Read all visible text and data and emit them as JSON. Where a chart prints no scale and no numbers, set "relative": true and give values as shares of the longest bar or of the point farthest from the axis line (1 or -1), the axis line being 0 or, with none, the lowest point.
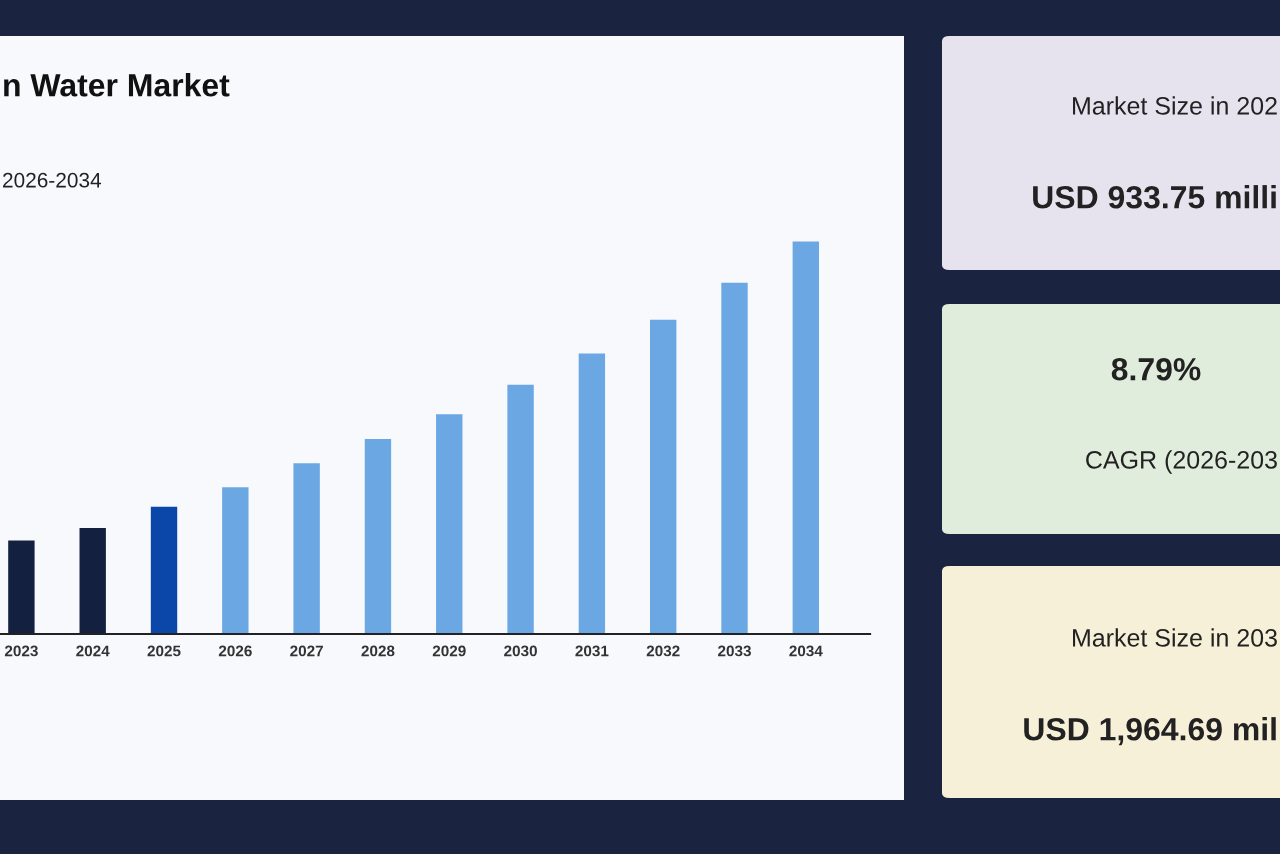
{
  "chart_data": [
    {
      "type": "bar",
      "title": "n Water Market",
      "subtitle": "2026-2034",
      "relative": true,
      "categories": [
        "2023",
        "2024",
        "2025",
        "2026",
        "2027",
        "2028",
        "2029",
        "2030",
        "2031",
        "2032",
        "2033",
        "2034"
      ],
      "values": [
        0.238,
        0.27,
        0.324,
        0.374,
        0.435,
        0.497,
        0.56,
        0.635,
        0.715,
        0.801,
        0.895,
        1
      ],
      "colors": [
        "#14203f",
        "#14203f",
        "#0a47a9",
        "#6aa7e3",
        "#6aa7e3",
        "#6aa7e3",
        "#6aa7e3",
        "#6aa7e3",
        "#6aa7e3",
        "#6aa7e3",
        "#6aa7e3",
        "#6aa7e3"
      ],
      "grid": false
    },
    {
      "type": "other",
      "annotations": [
        "Market Size in 202",
        "USD 933.75 milli",
        "8.79%",
        "CAGR (2026-203",
        "Market Size in 203",
        "USD 1,964.69 mil"
      ]
    }
  ]
}
